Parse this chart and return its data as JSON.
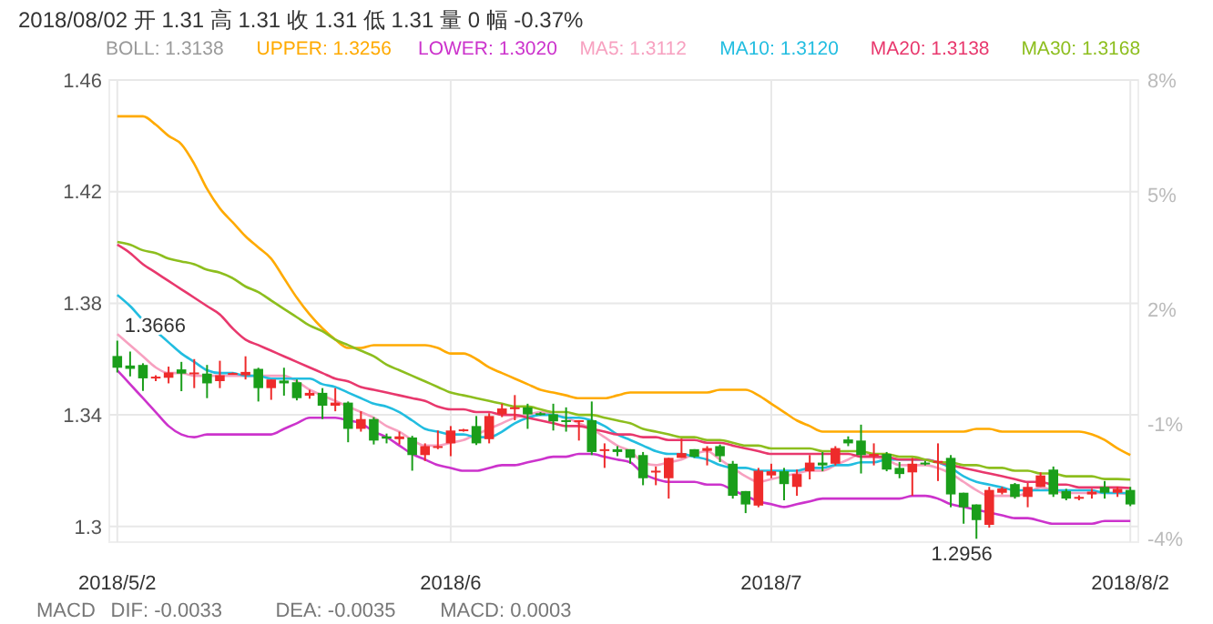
{
  "chart_data": {
    "type": "candlestick",
    "title": "2018/08/02 开 1.31 高 1.31 收 1.31 低 1.31 量 0 幅 -0.37%",
    "legend_title": "BOLL: 1.3138",
    "categories": [
      "2018/5/2",
      null,
      null,
      null,
      null,
      null,
      null,
      null,
      null,
      null,
      null,
      null,
      null,
      null,
      null,
      null,
      null,
      null,
      null,
      null,
      null,
      null,
      null,
      null,
      null,
      null,
      "2018/6",
      null,
      null,
      null,
      null,
      null,
      null,
      null,
      null,
      null,
      null,
      null,
      null,
      null,
      null,
      null,
      null,
      null,
      null,
      null,
      null,
      null,
      null,
      null,
      null,
      "2018/7",
      null,
      null,
      null,
      null,
      null,
      null,
      null,
      null,
      null,
      null,
      null,
      null,
      null,
      null,
      null,
      null,
      null,
      null,
      null,
      null,
      null,
      null,
      null,
      null,
      null,
      null,
      null,
      "2018/8/2"
    ],
    "ylim": [
      1.2944,
      1.46
    ],
    "yticks": [
      1.3,
      1.34,
      1.38,
      1.42,
      1.46
    ],
    "y2lim": [
      -4.1,
      8
    ],
    "y2ticks": [
      {
        "value": -4,
        "label": "-4%"
      },
      {
        "value": -1,
        "label": "-1%"
      },
      {
        "value": 2,
        "label": "2%"
      },
      {
        "value": 5,
        "label": "5%"
      },
      {
        "value": 8,
        "label": "8%"
      }
    ],
    "grid": true,
    "legend": "top",
    "series": [
      {
        "ohlc": [
          [
            1.3611,
            1.3666,
            1.3552,
            1.3569
          ],
          [
            1.3577,
            1.3627,
            1.3538,
            1.3565
          ],
          [
            1.3579,
            1.3585,
            1.3486,
            1.3531
          ],
          [
            1.3533,
            1.3542,
            1.3521,
            1.3537
          ],
          [
            1.3533,
            1.3573,
            1.3513,
            1.3552
          ],
          [
            1.3563,
            1.359,
            1.3485,
            1.3548
          ],
          [
            1.3548,
            1.36,
            1.3496,
            1.3552
          ],
          [
            1.3548,
            1.3579,
            1.346,
            1.3513
          ],
          [
            1.3521,
            1.3594,
            1.3496,
            1.3542
          ],
          [
            1.3548,
            1.3552,
            1.3544,
            1.355
          ],
          [
            1.3542,
            1.361,
            1.3527,
            1.3554
          ],
          [
            1.3565,
            1.3569,
            1.3448,
            1.3496
          ],
          [
            1.3496,
            1.3527,
            1.3454,
            1.3527
          ],
          [
            1.3523,
            1.3569,
            1.3469,
            1.3513
          ],
          [
            1.3517,
            1.3527,
            1.3452,
            1.346
          ],
          [
            1.3469,
            1.349,
            1.3458,
            1.3479
          ],
          [
            1.3479,
            1.3496,
            1.3385,
            1.3433
          ],
          [
            1.3433,
            1.3496,
            1.3413,
            1.3444
          ],
          [
            1.3444,
            1.3448,
            1.3302,
            1.335
          ],
          [
            1.335,
            1.3413,
            1.334,
            1.3385
          ],
          [
            1.3385,
            1.3392,
            1.3294,
            1.3308
          ],
          [
            1.3323,
            1.3333,
            1.3298,
            1.3315
          ],
          [
            1.3313,
            1.334,
            1.3294,
            1.3323
          ],
          [
            1.3319,
            1.3325,
            1.32,
            1.3256
          ],
          [
            1.3256,
            1.3298,
            1.3235,
            1.3288
          ],
          [
            1.3283,
            1.3344,
            1.3277,
            1.3288
          ],
          [
            1.3298,
            1.336,
            1.3252,
            1.3344
          ],
          [
            1.3344,
            1.335,
            1.334,
            1.3348
          ],
          [
            1.336,
            1.3396,
            1.3292,
            1.3298
          ],
          [
            1.3313,
            1.3406,
            1.3298,
            1.3396
          ],
          [
            1.3402,
            1.344,
            1.3392,
            1.3423
          ],
          [
            1.3421,
            1.3471,
            1.3381,
            1.3427
          ],
          [
            1.3427,
            1.344,
            1.335,
            1.3402
          ],
          [
            1.3406,
            1.341,
            1.3398,
            1.3402
          ],
          [
            1.3402,
            1.344,
            1.3344,
            1.3377
          ],
          [
            1.3381,
            1.3427,
            1.334,
            1.3375
          ],
          [
            1.3375,
            1.3381,
            1.3308,
            1.3381
          ],
          [
            1.3381,
            1.3448,
            1.3256,
            1.3267
          ],
          [
            1.3271,
            1.3298,
            1.321,
            1.3277
          ],
          [
            1.3277,
            1.3288,
            1.3252,
            1.3267
          ],
          [
            1.3277,
            1.3277,
            1.3225,
            1.3246
          ],
          [
            1.3256,
            1.3267,
            1.3148,
            1.3173
          ],
          [
            1.3194,
            1.3215,
            1.3148,
            1.32
          ],
          [
            1.3173,
            1.3246,
            1.31,
            1.3246
          ],
          [
            1.3246,
            1.3315,
            1.3246,
            1.3263
          ],
          [
            1.3277,
            1.3277,
            1.3246,
            1.325
          ],
          [
            1.3271,
            1.3288,
            1.3219,
            1.3281
          ],
          [
            1.3288,
            1.3294,
            1.3231,
            1.3252
          ],
          [
            1.3225,
            1.3235,
            1.31,
            1.311
          ],
          [
            1.3127,
            1.3127,
            1.3048,
            1.3079
          ],
          [
            1.3075,
            1.321,
            1.3069,
            1.32
          ],
          [
            1.3183,
            1.3225,
            1.3173,
            1.3198
          ],
          [
            1.3198,
            1.321,
            1.3094,
            1.3152
          ],
          [
            1.3142,
            1.3204,
            1.311,
            1.3188
          ],
          [
            1.3198,
            1.3256,
            1.3169,
            1.3229
          ],
          [
            1.3229,
            1.3267,
            1.3198,
            1.3219
          ],
          [
            1.3225,
            1.3288,
            1.3219,
            1.3281
          ],
          [
            1.3312,
            1.3323,
            1.3288,
            1.3298
          ],
          [
            1.3308,
            1.3365,
            1.319,
            1.3256
          ],
          [
            1.3252,
            1.3298,
            1.3219,
            1.326
          ],
          [
            1.326,
            1.3267,
            1.3198,
            1.3204
          ],
          [
            1.321,
            1.3231,
            1.3173,
            1.3188
          ],
          [
            1.3194,
            1.3246,
            1.311,
            1.3225
          ],
          [
            1.3229,
            1.3235,
            1.3219,
            1.3225
          ],
          [
            1.3231,
            1.3298,
            1.3163,
            1.3235
          ],
          [
            1.3246,
            1.3256,
            1.3069,
            1.3115
          ],
          [
            1.3121,
            1.3121,
            1.301,
            1.3069
          ],
          [
            1.3079,
            1.3079,
            1.2956,
            1.3023
          ],
          [
            1.3006,
            1.3142,
            1.2996,
            1.3131
          ],
          [
            1.3121,
            1.3142,
            1.3115,
            1.3136
          ],
          [
            1.3152,
            1.3156,
            1.31,
            1.3106
          ],
          [
            1.3106,
            1.3156,
            1.3069,
            1.3142
          ],
          [
            1.3142,
            1.3194,
            1.3142,
            1.3183
          ],
          [
            1.3204,
            1.3215,
            1.3106,
            1.3115
          ],
          [
            1.3127,
            1.3135,
            1.3094,
            1.31
          ],
          [
            1.31,
            1.3112,
            1.3094,
            1.3106
          ],
          [
            1.3115,
            1.3135,
            1.31,
            1.3125
          ],
          [
            1.3142,
            1.3163,
            1.31,
            1.3121
          ],
          [
            1.3121,
            1.3142,
            1.3106,
            1.3135
          ],
          [
            1.3131,
            1.3142,
            1.3073,
            1.3079
          ]
        ],
        "colors": [
          "#1a9e1a",
          "#1a9e1a",
          "#1a9e1a",
          "#ee2b2b",
          "#ee2b2b",
          "#1a9e1a",
          "#ee2b2b",
          "#1a9e1a",
          "#ee2b2b",
          "#ee2b2b",
          "#ee2b2b",
          "#1a9e1a",
          "#ee2b2b",
          "#1a9e1a",
          "#1a9e1a",
          "#ee2b2b",
          "#1a9e1a",
          "#ee2b2b",
          "#1a9e1a",
          "#ee2b2b",
          "#1a9e1a",
          "#1a9e1a",
          "#ee2b2b",
          "#1a9e1a",
          "#ee2b2b",
          "#ee2b2b",
          "#ee2b2b",
          "#ee2b2b",
          "#1a9e1a",
          "#ee2b2b",
          "#ee2b2b",
          "#ee2b2b",
          "#1a9e1a",
          "#1a9e1a",
          "#1a9e1a",
          "#1a9e1a",
          "#ee2b2b",
          "#1a9e1a",
          "#ee2b2b",
          "#1a9e1a",
          "#1a9e1a",
          "#1a9e1a",
          "#ee2b2b",
          "#ee2b2b",
          "#ee2b2b",
          "#1a9e1a",
          "#ee2b2b",
          "#1a9e1a",
          "#1a9e1a",
          "#1a9e1a",
          "#ee2b2b",
          "#ee2b2b",
          "#1a9e1a",
          "#ee2b2b",
          "#ee2b2b",
          "#1a9e1a",
          "#ee2b2b",
          "#1a9e1a",
          "#1a9e1a",
          "#ee2b2b",
          "#1a9e1a",
          "#1a9e1a",
          "#ee2b2b",
          "#1a9e1a",
          "#ee2b2b",
          "#1a9e1a",
          "#1a9e1a",
          "#1a9e1a",
          "#ee2b2b",
          "#ee2b2b",
          "#1a9e1a",
          "#ee2b2b",
          "#ee2b2b",
          "#1a9e1a",
          "#1a9e1a",
          "#ee2b2b",
          "#ee2b2b",
          "#1a9e1a",
          "#ee2b2b",
          "#1a9e1a"
        ]
      },
      {
        "type": "line",
        "name": "UPPER: 1.3256",
        "color": "#ffaa00",
        "values": [
          1.447,
          1.447,
          1.447,
          1.444,
          1.44,
          1.437,
          1.43,
          1.421,
          1.414,
          1.409,
          1.404,
          1.4,
          1.396,
          1.389,
          1.382,
          1.376,
          1.371,
          1.367,
          1.364,
          1.364,
          1.365,
          1.365,
          1.365,
          1.365,
          1.365,
          1.364,
          1.362,
          1.362,
          1.36,
          1.357,
          1.355,
          1.353,
          1.351,
          1.349,
          1.348,
          1.347,
          1.346,
          1.346,
          1.346,
          1.347,
          1.348,
          1.348,
          1.348,
          1.348,
          1.348,
          1.348,
          1.348,
          1.349,
          1.349,
          1.349,
          1.347,
          1.344,
          1.341,
          1.338,
          1.336,
          1.334,
          1.334,
          1.334,
          1.334,
          1.334,
          1.334,
          1.334,
          1.334,
          1.334,
          1.334,
          1.334,
          1.334,
          1.335,
          1.335,
          1.334,
          1.334,
          1.334,
          1.334,
          1.334,
          1.334,
          1.334,
          1.333,
          1.331,
          1.328,
          1.3256
        ]
      },
      {
        "type": "line",
        "name": "LOWER: 1.3020",
        "color": "#cc33cc",
        "values": [
          1.356,
          1.351,
          1.346,
          1.341,
          1.336,
          1.333,
          1.332,
          1.333,
          1.333,
          1.333,
          1.333,
          1.333,
          1.333,
          1.335,
          1.337,
          1.339,
          1.339,
          1.339,
          1.338,
          1.337,
          1.334,
          1.332,
          1.329,
          1.326,
          1.324,
          1.322,
          1.321,
          1.32,
          1.32,
          1.321,
          1.322,
          1.322,
          1.323,
          1.324,
          1.325,
          1.325,
          1.326,
          1.326,
          1.325,
          1.324,
          1.323,
          1.319,
          1.317,
          1.316,
          1.316,
          1.316,
          1.315,
          1.315,
          1.313,
          1.311,
          1.309,
          1.308,
          1.307,
          1.308,
          1.309,
          1.31,
          1.31,
          1.31,
          1.31,
          1.31,
          1.31,
          1.31,
          1.311,
          1.311,
          1.31,
          1.308,
          1.307,
          1.306,
          1.305,
          1.304,
          1.303,
          1.303,
          1.302,
          1.301,
          1.301,
          1.301,
          1.301,
          1.302,
          1.302,
          1.302
        ]
      },
      {
        "type": "line",
        "name": "MA5: 1.3112",
        "color": "#f7a1c0",
        "values": [
          1.369,
          1.365,
          1.361,
          1.357,
          1.355,
          1.355,
          1.354,
          1.354,
          1.354,
          1.354,
          1.354,
          1.354,
          1.354,
          1.354,
          1.352,
          1.349,
          1.347,
          1.345,
          1.343,
          1.341,
          1.339,
          1.336,
          1.334,
          1.331,
          1.329,
          1.329,
          1.33,
          1.331,
          1.333,
          1.335,
          1.337,
          1.339,
          1.34,
          1.341,
          1.34,
          1.339,
          1.337,
          1.335,
          1.332,
          1.329,
          1.327,
          1.323,
          1.322,
          1.323,
          1.324,
          1.326,
          1.327,
          1.324,
          1.321,
          1.318,
          1.316,
          1.317,
          1.318,
          1.319,
          1.32,
          1.32,
          1.322,
          1.324,
          1.326,
          1.325,
          1.324,
          1.322,
          1.322,
          1.322,
          1.321,
          1.319,
          1.316,
          1.313,
          1.311,
          1.311,
          1.311,
          1.312,
          1.314,
          1.313,
          1.312,
          1.312,
          1.312,
          1.312,
          1.312,
          1.3112
        ]
      },
      {
        "type": "line",
        "name": "MA10: 1.3120",
        "color": "#22bde0",
        "values": [
          1.383,
          1.379,
          1.374,
          1.37,
          1.366,
          1.362,
          1.359,
          1.356,
          1.355,
          1.355,
          1.354,
          1.354,
          1.353,
          1.353,
          1.353,
          1.353,
          1.351,
          1.35,
          1.348,
          1.346,
          1.344,
          1.343,
          1.341,
          1.338,
          1.335,
          1.334,
          1.333,
          1.333,
          1.332,
          1.332,
          1.334,
          1.337,
          1.339,
          1.34,
          1.34,
          1.339,
          1.339,
          1.338,
          1.336,
          1.333,
          1.331,
          1.329,
          1.327,
          1.326,
          1.326,
          1.325,
          1.324,
          1.322,
          1.321,
          1.321,
          1.32,
          1.32,
          1.32,
          1.32,
          1.321,
          1.321,
          1.322,
          1.322,
          1.323,
          1.323,
          1.324,
          1.324,
          1.324,
          1.324,
          1.323,
          1.321,
          1.318,
          1.316,
          1.315,
          1.314,
          1.313,
          1.313,
          1.313,
          1.313,
          1.313,
          1.313,
          1.313,
          1.312,
          1.312,
          1.312
        ]
      },
      {
        "type": "line",
        "name": "MA20: 1.3138",
        "color": "#e8386d",
        "values": [
          1.401,
          1.398,
          1.394,
          1.391,
          1.388,
          1.385,
          1.382,
          1.379,
          1.376,
          1.371,
          1.367,
          1.365,
          1.363,
          1.361,
          1.359,
          1.357,
          1.355,
          1.353,
          1.352,
          1.35,
          1.349,
          1.348,
          1.347,
          1.346,
          1.345,
          1.343,
          1.342,
          1.342,
          1.341,
          1.341,
          1.34,
          1.34,
          1.339,
          1.338,
          1.337,
          1.336,
          1.336,
          1.335,
          1.334,
          1.333,
          1.333,
          1.332,
          1.332,
          1.331,
          1.331,
          1.331,
          1.33,
          1.33,
          1.329,
          1.328,
          1.327,
          1.326,
          1.326,
          1.326,
          1.326,
          1.326,
          1.326,
          1.326,
          1.325,
          1.325,
          1.325,
          1.324,
          1.324,
          1.324,
          1.323,
          1.322,
          1.321,
          1.32,
          1.319,
          1.318,
          1.317,
          1.316,
          1.316,
          1.315,
          1.315,
          1.314,
          1.314,
          1.314,
          1.314,
          1.3138
        ]
      },
      {
        "type": "line",
        "name": "MA30: 1.3168",
        "color": "#8dbe1e",
        "values": [
          1.402,
          1.401,
          1.399,
          1.398,
          1.396,
          1.395,
          1.394,
          1.392,
          1.391,
          1.389,
          1.386,
          1.384,
          1.381,
          1.378,
          1.375,
          1.372,
          1.37,
          1.367,
          1.365,
          1.363,
          1.361,
          1.358,
          1.356,
          1.354,
          1.352,
          1.35,
          1.348,
          1.347,
          1.346,
          1.345,
          1.344,
          1.343,
          1.343,
          1.342,
          1.341,
          1.341,
          1.34,
          1.34,
          1.339,
          1.338,
          1.337,
          1.335,
          1.334,
          1.333,
          1.332,
          1.332,
          1.331,
          1.331,
          1.33,
          1.329,
          1.329,
          1.328,
          1.328,
          1.328,
          1.328,
          1.327,
          1.327,
          1.327,
          1.327,
          1.326,
          1.326,
          1.325,
          1.325,
          1.324,
          1.323,
          1.323,
          1.322,
          1.322,
          1.321,
          1.321,
          1.32,
          1.32,
          1.319,
          1.319,
          1.318,
          1.318,
          1.318,
          1.317,
          1.317,
          1.3168
        ]
      }
    ],
    "annotations": [
      {
        "text": "1.3666",
        "y": 1.3666
      },
      "1.2956",
      "MACD",
      "DIF: -0.0033",
      "DEA: -0.0035",
      "MACD: 0.0003"
    ]
  }
}
